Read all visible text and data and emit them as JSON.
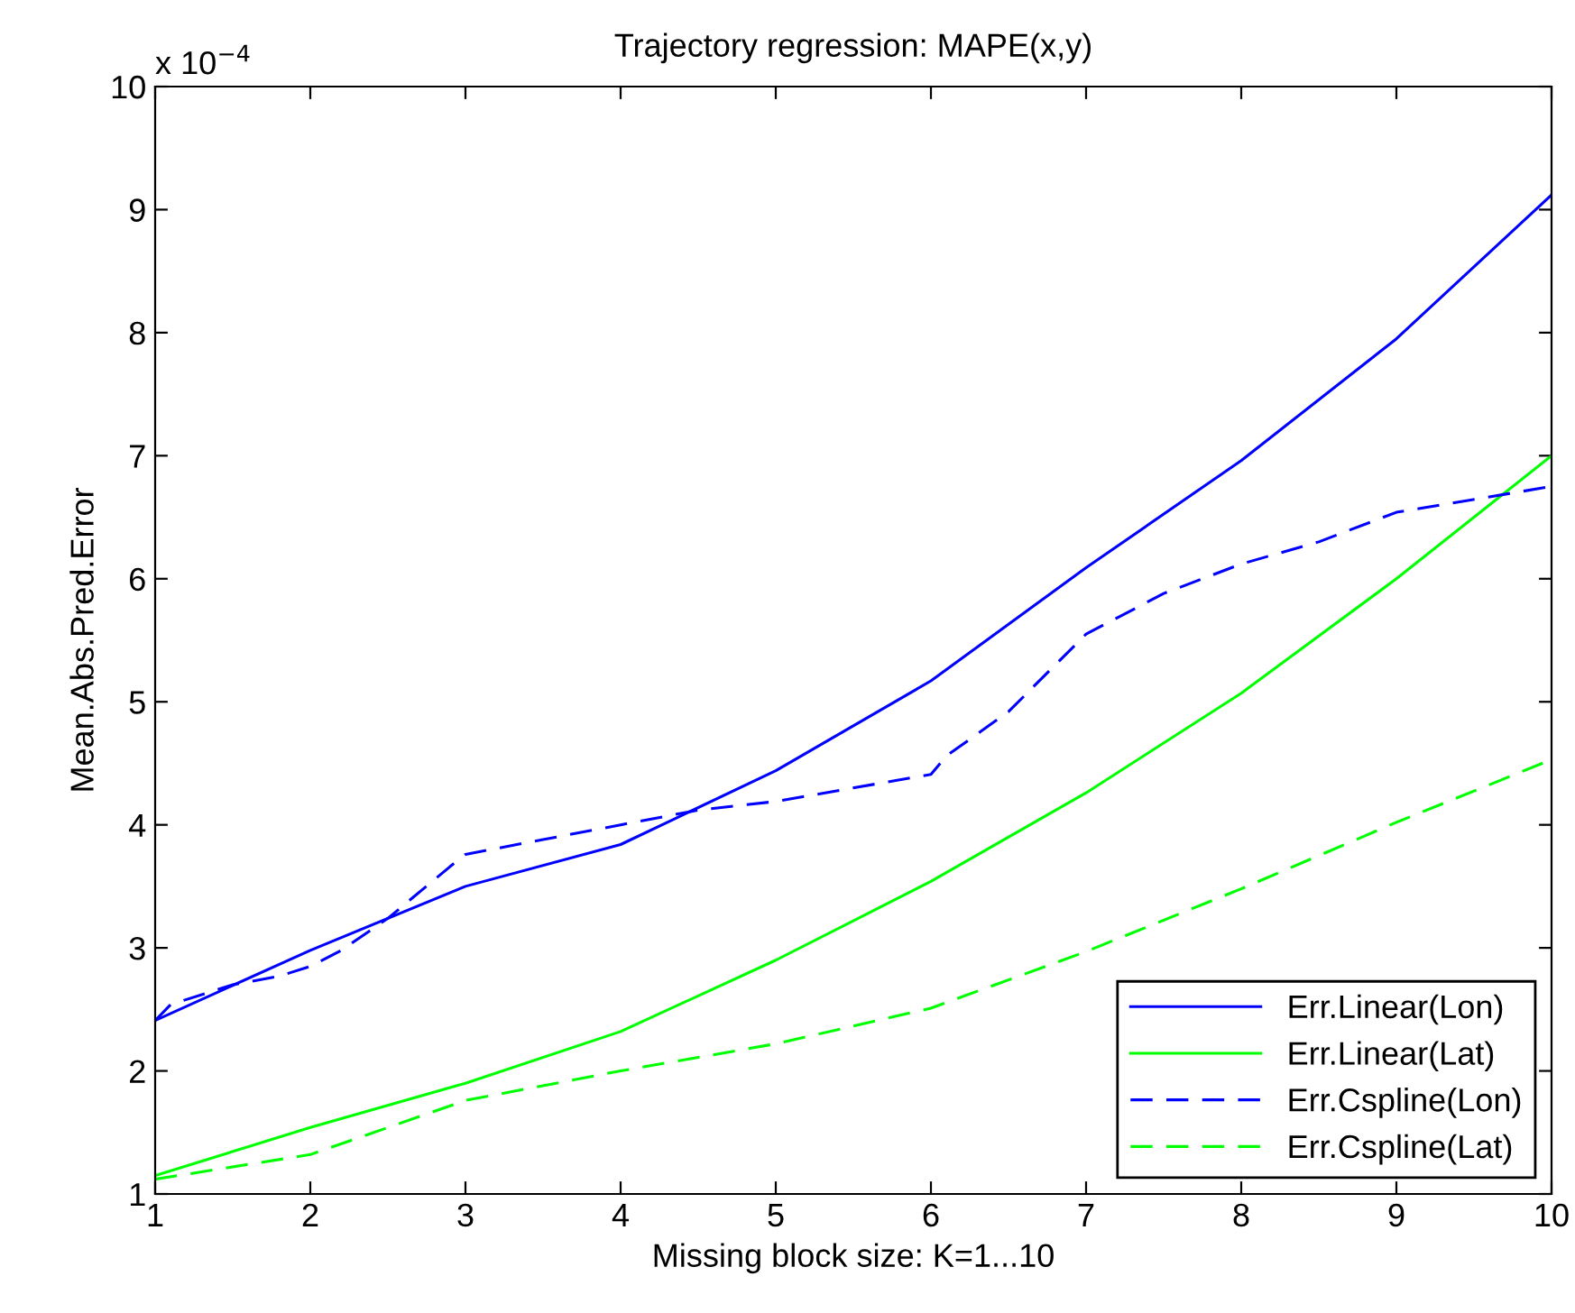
{
  "chart_data": {
    "type": "line",
    "title": "Trajectory regression: MAPE(x,y)",
    "xlabel": "Missing block size: K=1...10",
    "ylabel": "Mean.Abs.Pred.Error",
    "annotations": [
      "x 10$^{−4}$"
    ],
    "xlim": [
      1,
      10
    ],
    "xticks": [
      1,
      2,
      3,
      4,
      5,
      6,
      7,
      8,
      9,
      10
    ],
    "ylim": [
      1,
      10
    ],
    "yticks": [
      1,
      2,
      3,
      4,
      5,
      6,
      7,
      8,
      9,
      10
    ],
    "grid": false,
    "legend": "bottom right",
    "series": [
      {
        "name": "Err.Linear(Lon)",
        "color": "#0000ff",
        "line_style": "solid",
        "x": [
          1,
          2,
          3,
          4,
          5,
          6,
          7,
          8,
          9,
          10
        ],
        "values": [
          2.41,
          2.98,
          3.5,
          3.84,
          4.44,
          5.17,
          6.09,
          6.96,
          7.95,
          9.12
        ]
      },
      {
        "name": "Err.Linear(Lat)",
        "color": "#00ff00",
        "line_style": "solid",
        "x": [
          1,
          2,
          3,
          4,
          5,
          6,
          7,
          8,
          9,
          10
        ],
        "values": [
          1.15,
          1.54,
          1.9,
          2.32,
          2.9,
          3.54,
          4.26,
          5.07,
          6.0,
          7.0
        ]
      },
      {
        "name": "Err.Cspline(Lon)",
        "color": "#0000ff",
        "line_style": "dashed",
        "x": [
          1,
          1.1,
          1.5,
          1.8,
          2,
          2.2,
          2.5,
          2.9,
          3,
          3.5,
          4,
          4.5,
          5,
          6,
          6.1,
          6.5,
          7,
          7.5,
          8,
          8.5,
          9,
          10
        ],
        "values": [
          2.41,
          2.54,
          2.7,
          2.77,
          2.85,
          2.98,
          3.24,
          3.66,
          3.76,
          3.88,
          4.0,
          4.12,
          4.19,
          4.41,
          4.56,
          4.92,
          5.55,
          5.88,
          6.12,
          6.3,
          6.54,
          6.75
        ]
      },
      {
        "name": "Err.Cspline(Lat)",
        "color": "#00ff00",
        "line_style": "dashed",
        "x": [
          1,
          2,
          3,
          4,
          5,
          6,
          7,
          8,
          9,
          10
        ],
        "values": [
          1.12,
          1.32,
          1.76,
          2.0,
          2.22,
          2.51,
          2.97,
          3.48,
          4.02,
          4.53
        ]
      }
    ]
  }
}
